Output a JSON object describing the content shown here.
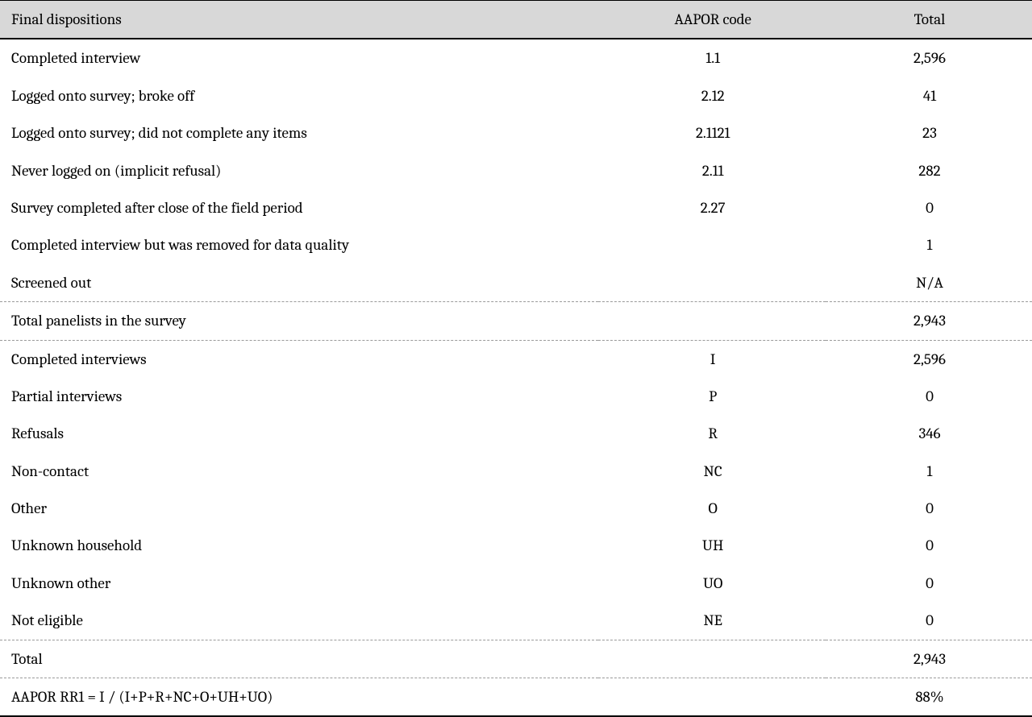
{
  "table": {
    "type": "table",
    "colors": {
      "header_background": "#d8d8d8",
      "border_solid": "#000000",
      "border_dashed": "#9a9a9a",
      "text": "#000000",
      "background": "#ffffff"
    },
    "typography": {
      "font_family": "Cambria, Georgia, 'Times New Roman', serif",
      "font_size_pt": 14,
      "line_height": 1.6
    },
    "columns": [
      {
        "label": "Final dispositions",
        "align": "left",
        "width_pct": 58
      },
      {
        "label": "AAPOR code",
        "align": "center",
        "width_pct": 22
      },
      {
        "label": "Total",
        "align": "center",
        "width_pct": 20
      }
    ],
    "rows": [
      {
        "cells": [
          "Completed interview",
          "1.1",
          "2,596"
        ]
      },
      {
        "cells": [
          "Logged onto survey; broke off",
          "2.12",
          "41"
        ]
      },
      {
        "cells": [
          "Logged onto survey; did not complete any items",
          "2.1121",
          "23"
        ]
      },
      {
        "cells": [
          "Never logged on (implicit refusal)",
          "2.11",
          "282"
        ]
      },
      {
        "cells": [
          "Survey completed after close of the field period",
          "2.27",
          "0"
        ]
      },
      {
        "cells": [
          "Completed interview but was removed for data quality",
          "",
          "1"
        ]
      },
      {
        "cells": [
          "Screened out",
          "",
          "N/A"
        ],
        "border_bottom": "dashed"
      },
      {
        "cells": [
          "Total panelists in the survey",
          "",
          "2,943"
        ],
        "border_bottom": "dashed"
      },
      {
        "cells": [
          "Completed interviews",
          "I",
          "2,596"
        ]
      },
      {
        "cells": [
          "Partial interviews",
          "P",
          "0"
        ]
      },
      {
        "cells": [
          "Refusals",
          "R",
          "346"
        ]
      },
      {
        "cells": [
          "Non-contact",
          "NC",
          "1"
        ]
      },
      {
        "cells": [
          "Other",
          "O",
          "0"
        ]
      },
      {
        "cells": [
          "Unknown household",
          "UH",
          "0"
        ]
      },
      {
        "cells": [
          "Unknown other",
          "UO",
          "0"
        ]
      },
      {
        "cells": [
          "Not eligible",
          "NE",
          "0"
        ],
        "border_bottom": "dashed"
      },
      {
        "cells": [
          "Total",
          "",
          "2,943"
        ],
        "border_bottom": "dashed"
      },
      {
        "cells": [
          "AAPOR RR1 = I / (I+P+R+NC+O+UH+UO)",
          "",
          "88%"
        ],
        "border_bottom": "solid-heavy"
      }
    ]
  }
}
